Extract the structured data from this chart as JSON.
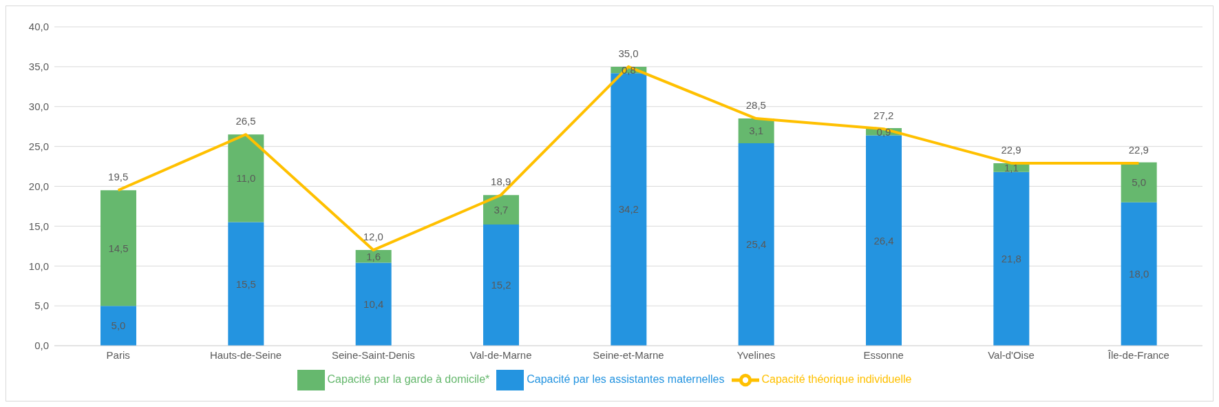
{
  "chart_data": {
    "type": "bar",
    "stacked": true,
    "categories": [
      "Paris",
      "Hauts-de-Seine",
      "Seine-Saint-Denis",
      "Val-de-Marne",
      "Seine-et-Marne",
      "Yvelines",
      "Essonne",
      "Val-d'Oise",
      "Île-de-France"
    ],
    "series": [
      {
        "name": "Capacité par les assistantes maternelles",
        "color": "#2494e0",
        "values": [
          5.0,
          15.5,
          10.4,
          15.2,
          34.2,
          25.4,
          26.4,
          21.8,
          18.0
        ],
        "value_labels": [
          "5,0",
          "15,5",
          "10,4",
          "15,2",
          "34,2",
          "25,4",
          "26,4",
          "21,8",
          "18,0"
        ]
      },
      {
        "name": "Capacité par la garde à domicile*",
        "color": "#66b86e",
        "values": [
          14.5,
          11.0,
          1.6,
          3.7,
          0.8,
          3.1,
          0.9,
          1.1,
          5.0
        ],
        "value_labels": [
          "14,5",
          "11,0",
          "1,6",
          "3,7",
          "0,8",
          "3,1",
          "0,9",
          "1,1",
          "5,0"
        ]
      },
      {
        "name": "Capacité théorique individuelle",
        "type": "line",
        "color": "#ffc000",
        "values": [
          19.5,
          26.5,
          12.0,
          18.9,
          35.0,
          28.5,
          27.2,
          22.9,
          22.9
        ],
        "value_labels": [
          "19,5",
          "26,5",
          "12,0",
          "18,9",
          "35,0",
          "28,5",
          "27,2",
          "22,9",
          "22,9"
        ]
      }
    ],
    "ylim": [
      0,
      40
    ],
    "yticks": [
      {
        "value": 0,
        "label": "0,0"
      },
      {
        "value": 5,
        "label": "5,0"
      },
      {
        "value": 10,
        "label": "10,0"
      },
      {
        "value": 15,
        "label": "15,0"
      },
      {
        "value": 20,
        "label": "20,0"
      },
      {
        "value": 25,
        "label": "25,0"
      },
      {
        "value": 30,
        "label": "30,0"
      },
      {
        "value": 35,
        "label": "35,0"
      },
      {
        "value": 40,
        "label": "40,0"
      }
    ],
    "grid": "y",
    "legend": "bottom",
    "marker": "none"
  }
}
